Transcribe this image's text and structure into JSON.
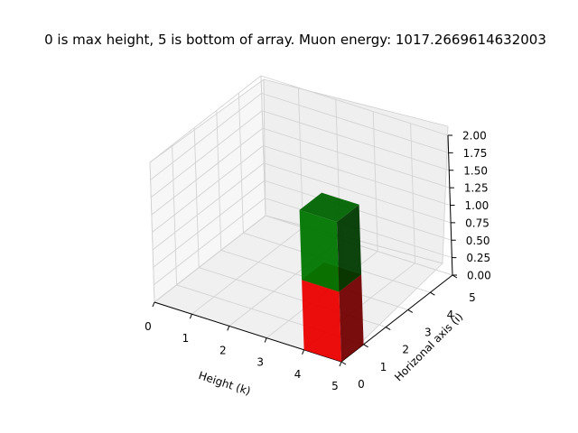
{
  "chart_data": {
    "type": "bar3d",
    "title": "0 is max height, 5 is bottom of array. Muon energy: 1017.2669614632003",
    "xlabel": "Height (k)",
    "ylabel": "Horizonal axis (i)",
    "zlabel": "",
    "xlim": [
      0,
      5
    ],
    "ylim": [
      0,
      5
    ],
    "zlim": [
      0,
      2
    ],
    "x_ticks": [
      "0",
      "1",
      "2",
      "3",
      "4",
      "5"
    ],
    "y_ticks": [
      "0",
      "1",
      "2",
      "3",
      "4",
      "5"
    ],
    "z_ticks": [
      "0.00",
      "0.25",
      "0.50",
      "0.75",
      "1.00",
      "1.25",
      "1.50",
      "1.75",
      "2.00"
    ],
    "bars": [
      {
        "x": 4,
        "y": 0,
        "z_bottom": 0,
        "height": 1,
        "color": "#ff0000",
        "label": "red voxel"
      },
      {
        "x": 4,
        "y": 0,
        "z_bottom": 1,
        "height": 1,
        "color": "#008000",
        "label": "green voxel"
      }
    ]
  }
}
